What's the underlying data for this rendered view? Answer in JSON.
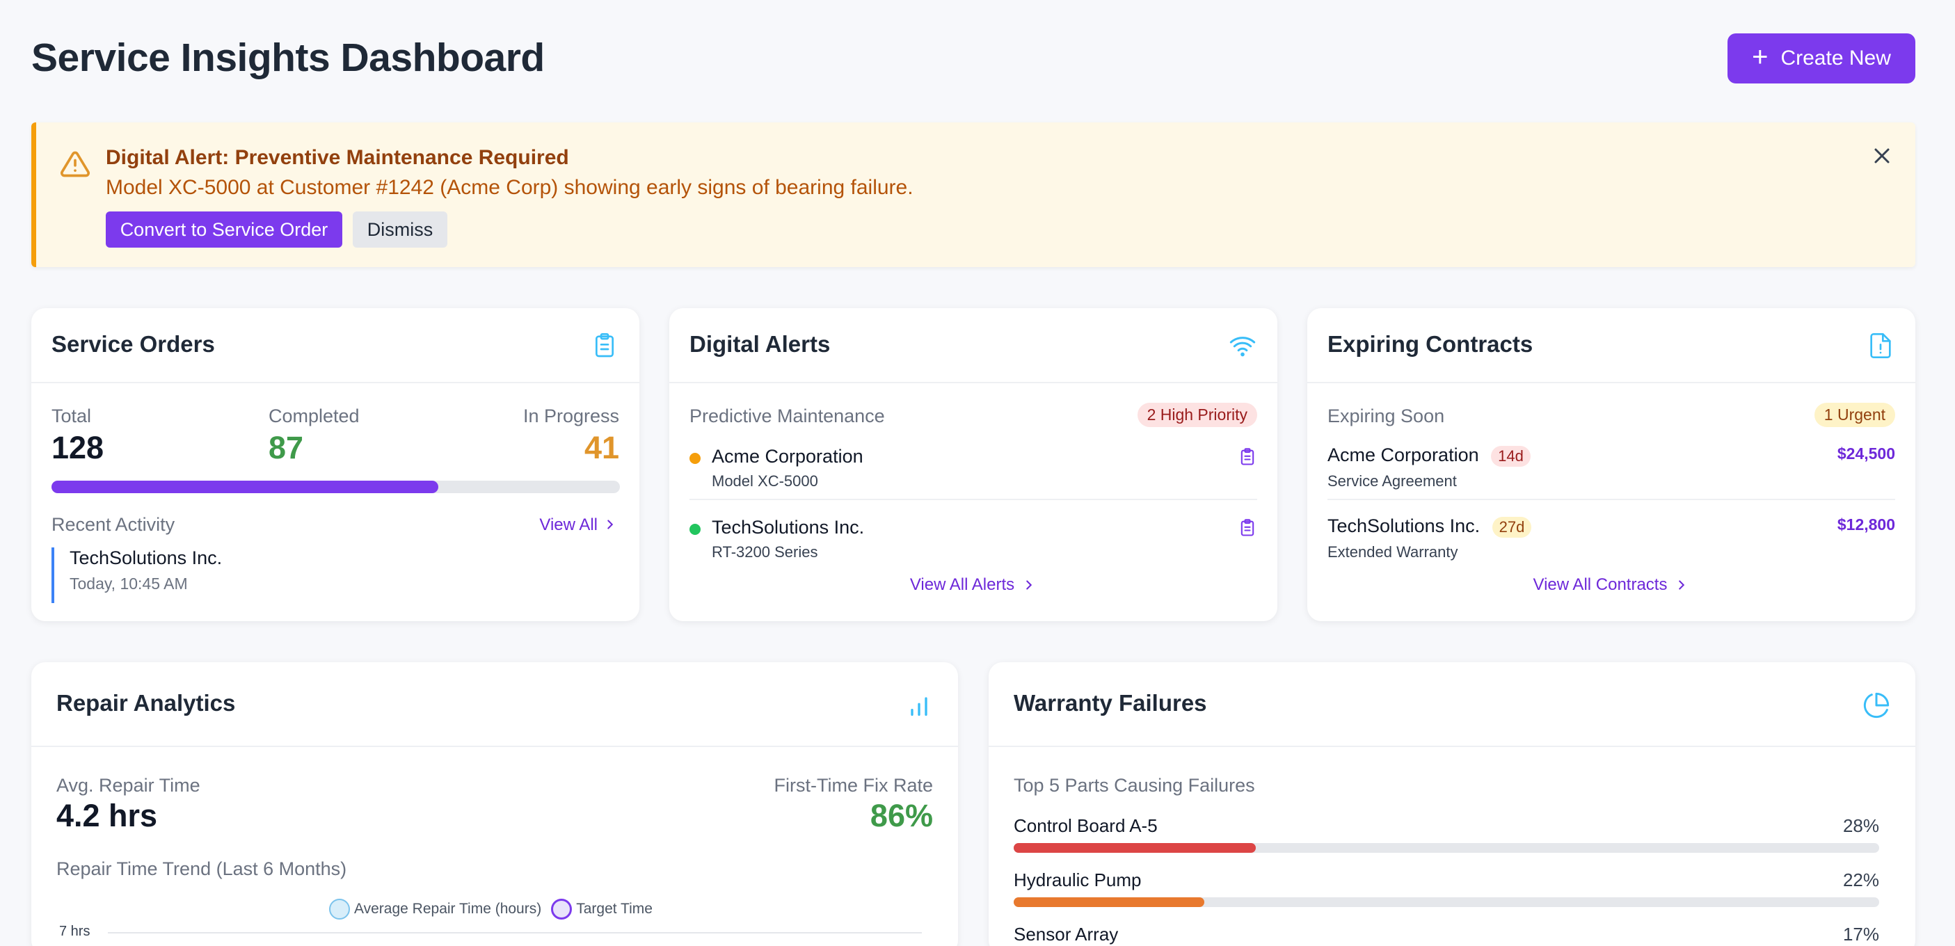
{
  "header": {
    "title": "Service Insights Dashboard",
    "create_label": "Create New"
  },
  "alert": {
    "title": "Digital Alert: Preventive Maintenance Required",
    "message": "Model XC-5000 at Customer #1242 (Acme Corp) showing early signs of bearing failure.",
    "primary_label": "Convert to Service Order",
    "dismiss_label": "Dismiss"
  },
  "service_orders": {
    "title": "Service Orders",
    "total_label": "Total",
    "total_value": "128",
    "completed_label": "Completed",
    "completed_value": "87",
    "in_progress_label": "In Progress",
    "in_progress_value": "41",
    "completion_fraction": 0.68,
    "recent_label": "Recent Activity",
    "view_all_label": "View All",
    "activity": {
      "name": "TechSolutions Inc.",
      "time": "Today, 10:45 AM"
    }
  },
  "digital_alerts": {
    "title": "Digital Alerts",
    "section_label": "Predictive Maintenance",
    "badge": "2 High Priority",
    "items": [
      {
        "company": "Acme Corporation",
        "model": "Model XC-5000",
        "status_color": "#f59e0b"
      },
      {
        "company": "TechSolutions Inc.",
        "model": "RT-3200 Series",
        "status_color": "#22c55e"
      }
    ],
    "view_all_label": "View All Alerts"
  },
  "expiring_contracts": {
    "title": "Expiring Contracts",
    "section_label": "Expiring Soon",
    "badge": "1 Urgent",
    "items": [
      {
        "company": "Acme Corporation",
        "days": "14d",
        "type": "Service Agreement",
        "amount": "$24,500"
      },
      {
        "company": "TechSolutions Inc.",
        "days": "27d",
        "type": "Extended Warranty",
        "amount": "$12,800"
      }
    ],
    "view_all_label": "View All Contracts"
  },
  "repair_analytics": {
    "title": "Repair Analytics",
    "avg_label": "Avg. Repair Time",
    "avg_value": "4.2 hrs",
    "fix_label": "First-Time Fix Rate",
    "fix_value": "86%",
    "trend_label": "Repair Time Trend (Last 6 Months)",
    "legend": [
      "Average Repair Time (hours)",
      "Target Time"
    ],
    "y_tick": "7 hrs"
  },
  "warranty_failures": {
    "title": "Warranty Failures",
    "section_label": "Top 5 Parts Causing Failures",
    "parts": [
      {
        "name": "Control Board A-5",
        "pct": "28%",
        "value": 0.28,
        "color": "#dc4545"
      },
      {
        "name": "Hydraulic Pump",
        "pct": "22%",
        "value": 0.22,
        "color": "#e8792e"
      },
      {
        "name": "Sensor Array",
        "pct": "17%",
        "value": 0.17,
        "color": "#eab308"
      }
    ]
  },
  "colors": {
    "accent": "#7c3aed",
    "green": "#3f9a4a",
    "amber": "#e0952b",
    "icon_blue": "#38bdf8"
  }
}
